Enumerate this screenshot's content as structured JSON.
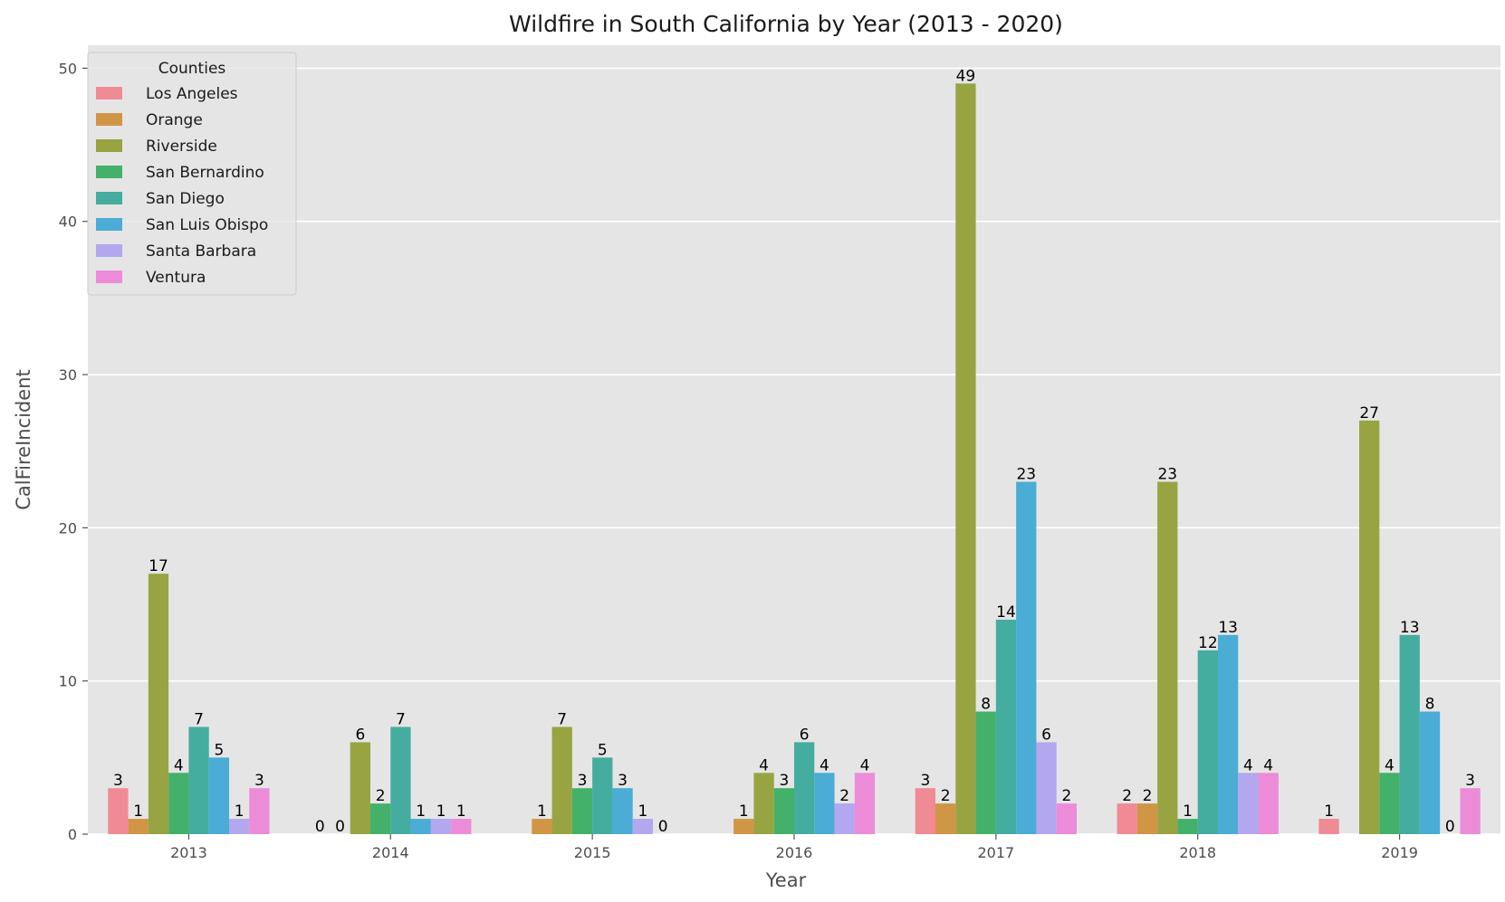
{
  "chart_data": {
    "type": "bar",
    "title": "Wildfire in South California by Year (2013 - 2020)",
    "xlabel": "Year",
    "ylabel": "CalFireIncident",
    "ylim": [
      0,
      51.5
    ],
    "yticks": [
      0,
      10,
      20,
      30,
      40,
      50
    ],
    "grid": true,
    "legend": {
      "title": "Counties",
      "placement": "top-left"
    },
    "categories": [
      "2013",
      "2014",
      "2015",
      "2016",
      "2017",
      "2018",
      "2019"
    ],
    "series": [
      {
        "name": "Los Angeles",
        "color": "#f08a94",
        "values": [
          3,
          0,
          null,
          null,
          3,
          2,
          1
        ]
      },
      {
        "name": "Orange",
        "color": "#d09645",
        "values": [
          1,
          0,
          1,
          1,
          2,
          2,
          null
        ]
      },
      {
        "name": "Riverside",
        "color": "#98a442",
        "values": [
          17,
          6,
          7,
          4,
          49,
          23,
          27
        ]
      },
      {
        "name": "San Bernardino",
        "color": "#43b169",
        "values": [
          4,
          2,
          3,
          3,
          8,
          1,
          4
        ]
      },
      {
        "name": "San Diego",
        "color": "#45aca0",
        "values": [
          7,
          7,
          5,
          6,
          14,
          12,
          13
        ]
      },
      {
        "name": "San Luis Obispo",
        "color": "#4bacd6",
        "values": [
          5,
          1,
          3,
          4,
          23,
          13,
          8
        ]
      },
      {
        "name": "Santa Barbara",
        "color": "#b3a7ef",
        "values": [
          1,
          1,
          1,
          2,
          6,
          4,
          0
        ]
      },
      {
        "name": "Ventura",
        "color": "#ec8cd8",
        "values": [
          3,
          1,
          0,
          4,
          2,
          4,
          3
        ]
      }
    ]
  }
}
